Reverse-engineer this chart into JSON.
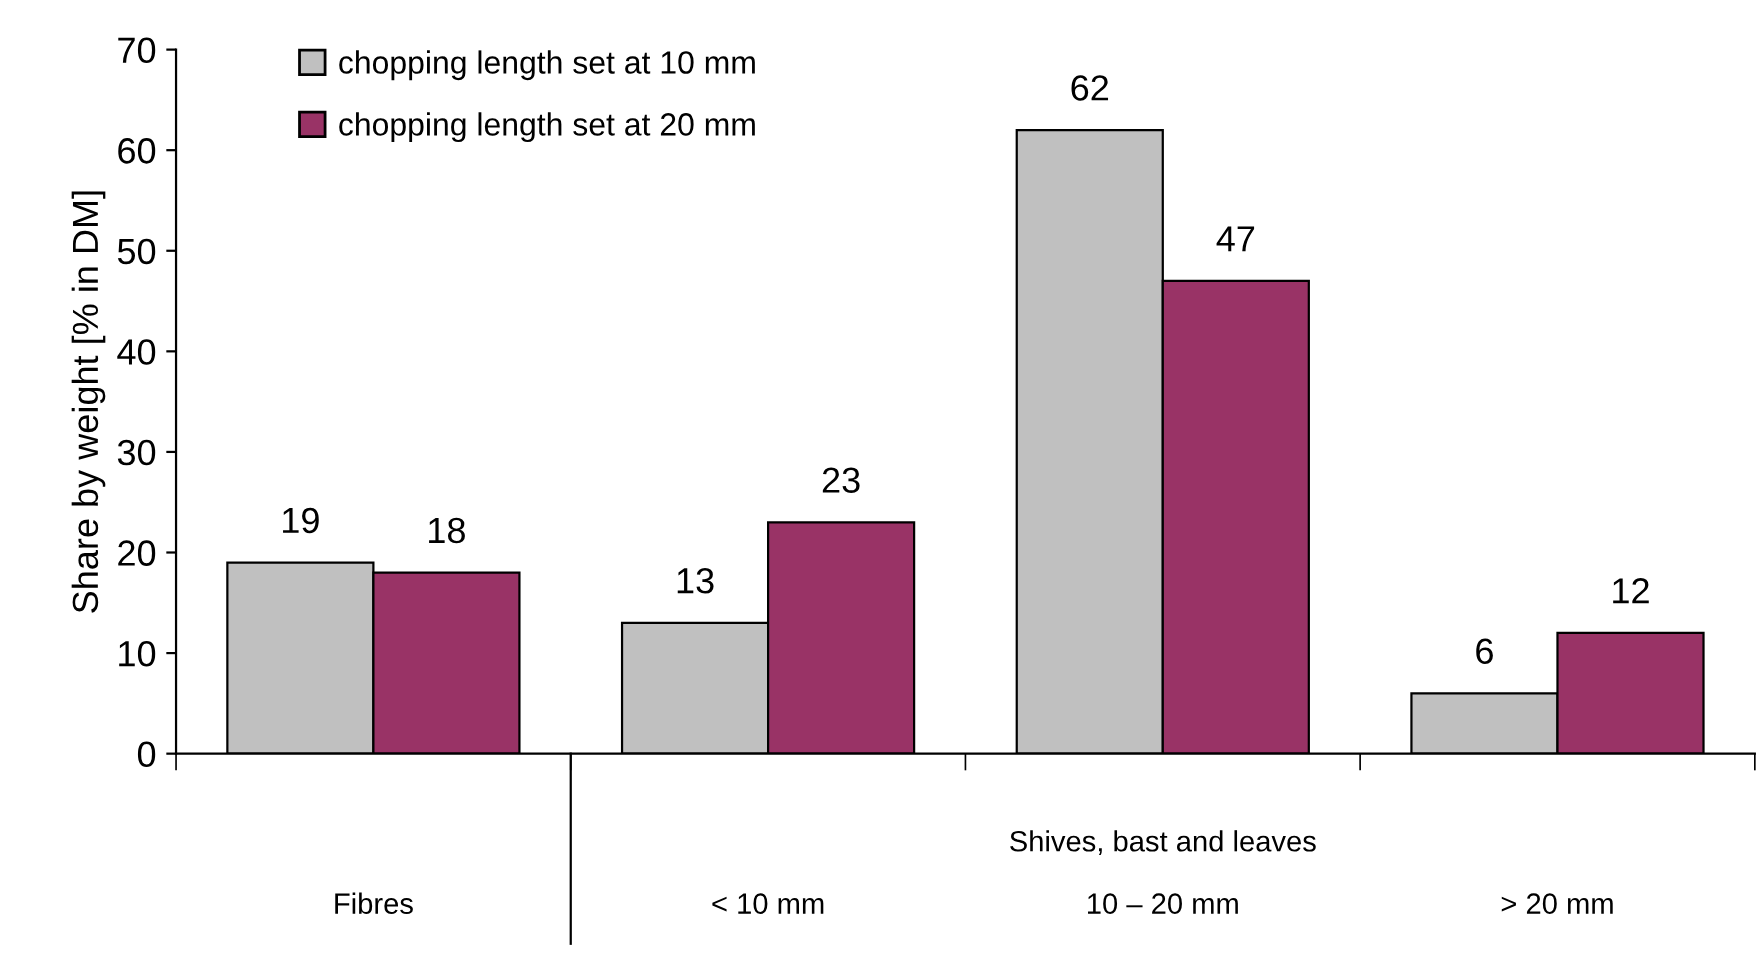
{
  "chart_data": {
    "type": "bar",
    "ylabel": "Share by weight [% in DM]",
    "categories": [
      "Fibres",
      "< 10 mm",
      "10 – 20 mm",
      "> 20 mm"
    ],
    "series": [
      {
        "name": "chopping length set at 10 mm",
        "color": "#c0c0c0",
        "values": [
          19,
          13,
          62,
          6
        ]
      },
      {
        "name": "chopping length set at 20 mm",
        "color": "#993366",
        "values": [
          18,
          23,
          47,
          12
        ]
      }
    ],
    "ylim": [
      0,
      70
    ],
    "yticks": [
      0,
      10,
      20,
      30,
      40,
      50,
      60,
      70
    ],
    "data_labels": true,
    "grid": false,
    "legend": "top left",
    "annotations": [
      "Shives, bast and leaves"
    ]
  }
}
